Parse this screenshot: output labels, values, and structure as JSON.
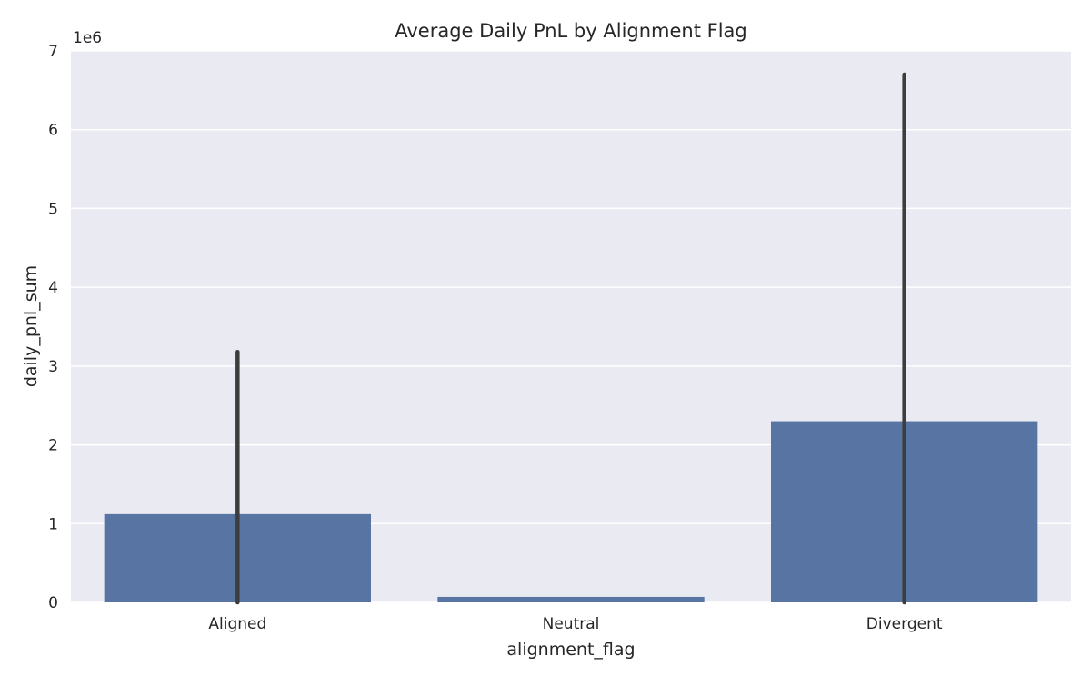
{
  "chart_data": {
    "type": "bar",
    "title": "Average Daily PnL by Alignment Flag",
    "xlabel": "alignment_flag",
    "ylabel": "daily_pnl_sum",
    "y_offset_label": "1e6",
    "y_scale": 1000000,
    "categories": [
      "Aligned",
      "Neutral",
      "Divergent"
    ],
    "values": [
      1120000,
      70000,
      2300000
    ],
    "error_bars": [
      {
        "low": 0,
        "high": 3180000
      },
      null,
      {
        "low": 0,
        "high": 6700000
      }
    ],
    "ylim": [
      0,
      7000000
    ],
    "yticks": [
      0,
      1000000,
      2000000,
      3000000,
      4000000,
      5000000,
      6000000,
      7000000
    ],
    "ytick_labels": [
      "0",
      "1",
      "2",
      "3",
      "4",
      "5",
      "6",
      "7"
    ],
    "grid": true,
    "colors": {
      "bar": "#5874a3",
      "errorbar": "#3d3d3d",
      "plot_background": "#eaeaf2",
      "grid": "#ffffff"
    }
  }
}
